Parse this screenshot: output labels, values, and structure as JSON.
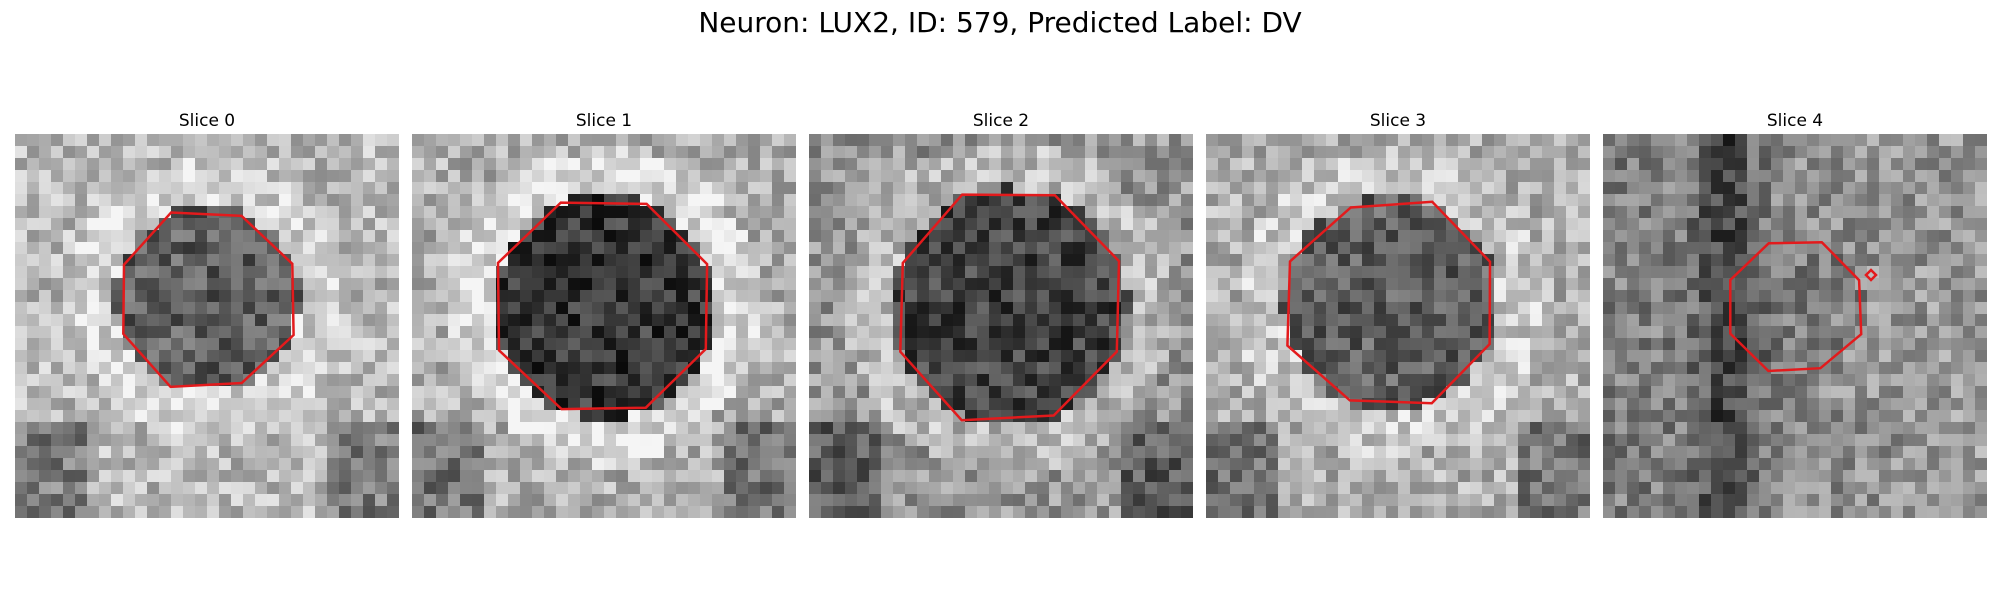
{
  "figure": {
    "title": "Neuron: LUX2, ID: 579, Predicted Label: DV",
    "outline_color": "#e31a1c"
  },
  "panels": [
    {
      "title": "Slice 0",
      "image": "grayscale-microscopy-slice",
      "outline": "cell-boundary"
    },
    {
      "title": "Slice 1",
      "image": "grayscale-microscopy-slice",
      "outline": "cell-boundary"
    },
    {
      "title": "Slice 2",
      "image": "grayscale-microscopy-slice",
      "outline": "cell-boundary"
    },
    {
      "title": "Slice 3",
      "image": "grayscale-microscopy-slice",
      "outline": "cell-boundary"
    },
    {
      "title": "Slice 4",
      "image": "grayscale-microscopy-slice",
      "outline": "cell-boundary"
    }
  ]
}
